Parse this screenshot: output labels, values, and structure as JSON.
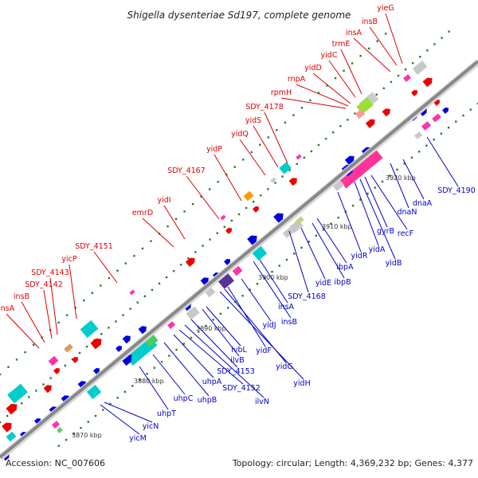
{
  "title": "Shigella dysenteriae Sd197, complete genome",
  "footer": {
    "accession": "Accession: NC_007606",
    "summary": "Topology: circular; Length: 4,369,232 bp; Genes: 4,377"
  },
  "colors": {
    "forward_label": "#dd0000",
    "reverse_label": "#0000cc",
    "backbone": "#888888",
    "tick_dots": "#2a7a2a"
  },
  "scale_ticks": [
    "3870 kbp",
    "3880 kbp",
    "3890 kbp",
    "3900 kbp",
    "3910 kbp",
    "3920 kbp"
  ],
  "forward_genes": [
    "yieG",
    "insB",
    "insA",
    "trmE",
    "yidC",
    "yidD",
    "rnpA",
    "rpmH",
    "SDY_4178",
    "yidS",
    "yidQ",
    "yidP",
    "SDY_4167",
    "yidI",
    "emrD",
    "SDY_4151",
    "yicP",
    "SDY_4143",
    "SDY_4142",
    "insB",
    "insA"
  ],
  "reverse_genes": [
    "SDY_4190",
    "dnaA",
    "dnaN",
    "recF",
    "gyrB",
    "yidB",
    "yidA",
    "yidR",
    "ibpA",
    "ibpB",
    "yidE",
    "SDY_4168",
    "insA",
    "insB",
    "yidJ",
    "yidF",
    "yidG",
    "yidH",
    "ivbL",
    "ilvB",
    "SDY_4153",
    "uhpA",
    "SDY_4152",
    "ilvN",
    "uhpB",
    "uhpC",
    "uhpT",
    "yicN",
    "yicM"
  ]
}
